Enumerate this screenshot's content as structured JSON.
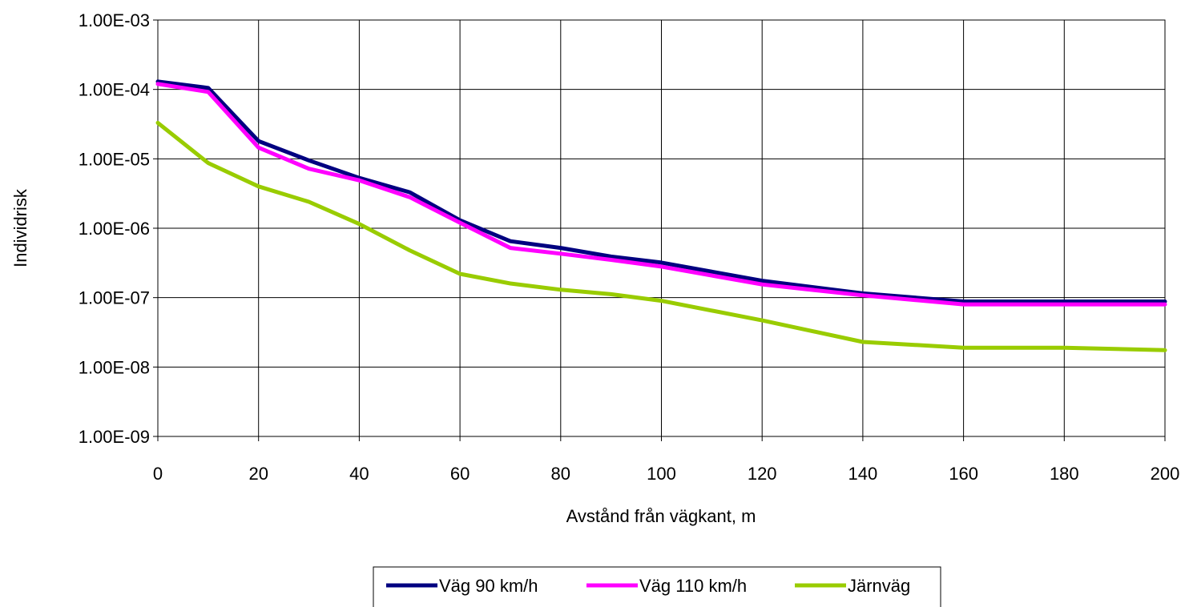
{
  "chart_data": {
    "type": "line",
    "title": "",
    "xlabel": "Avstånd från vägkant, m",
    "ylabel": "Individrisk",
    "y_scale": "log",
    "xlim": [
      0,
      200
    ],
    "ylim": [
      1e-09,
      0.001
    ],
    "x_ticks": [
      0,
      20,
      40,
      60,
      80,
      100,
      120,
      140,
      160,
      180,
      200
    ],
    "x_tick_labels": [
      "0",
      "20",
      "40",
      "60",
      "80",
      "100",
      "120",
      "140",
      "160",
      "180",
      "200"
    ],
    "y_ticks": [
      0.001,
      0.0001,
      1e-05,
      1e-06,
      1e-07,
      1e-08,
      1e-09
    ],
    "y_tick_labels": [
      "1.00E-03",
      "1.00E-04",
      "1.00E-05",
      "1.00E-06",
      "1.00E-07",
      "1.00E-08",
      "1.00E-09"
    ],
    "grid": true,
    "legend_position": "bottom",
    "x": [
      0,
      10,
      20,
      30,
      40,
      50,
      60,
      70,
      80,
      90,
      100,
      120,
      140,
      160,
      180,
      200
    ],
    "series": [
      {
        "name": "Väg 90 km/h",
        "color": "#000080",
        "values": [
          0.00013,
          0.000105,
          1.8e-05,
          9.5e-06,
          5.3e-06,
          3.3e-06,
          1.3e-06,
          6.5e-07,
          5.2e-07,
          3.9e-07,
          3.2e-07,
          1.75e-07,
          1.15e-07,
          8.8e-08,
          8.8e-08,
          8.8e-08
        ]
      },
      {
        "name": "Väg 110 km/h",
        "color": "#ff00ff",
        "values": [
          0.00012,
          9.2e-05,
          1.45e-05,
          7.2e-06,
          4.9e-06,
          2.8e-06,
          1.2e-06,
          5.2e-07,
          4.3e-07,
          3.5e-07,
          2.8e-07,
          1.55e-07,
          1.08e-07,
          8e-08,
          8e-08,
          8e-08
        ]
      },
      {
        "name": "Järnväg",
        "color": "#99cc00",
        "values": [
          3.3e-05,
          8.7e-06,
          4e-06,
          2.4e-06,
          1.15e-06,
          4.8e-07,
          2.2e-07,
          1.6e-07,
          1.3e-07,
          1.12e-07,
          9e-08,
          4.7e-08,
          2.3e-08,
          1.9e-08,
          1.9e-08,
          1.75e-08
        ]
      }
    ]
  }
}
